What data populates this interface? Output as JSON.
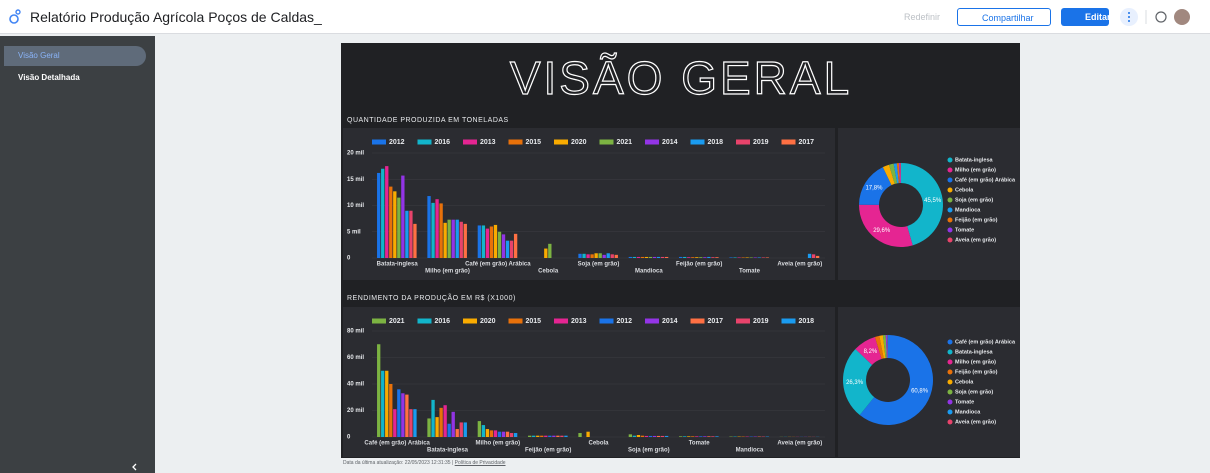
{
  "header": {
    "title": "Relatório Produção Agrícola Poços de Caldas_",
    "reset": "Redefinir",
    "share": "Compartilhar",
    "edit": "Editar"
  },
  "sidebar": {
    "pages": [
      "Visão Geral",
      "Visão Detalhada"
    ]
  },
  "report": {
    "title": "VISÃO GERAL"
  },
  "footer": {
    "updated": "Data da última atualização: 22/05/2023 12:31:35",
    "privacy": "Política de Privacidade"
  },
  "chart_data": [
    {
      "type": "bar",
      "title": "QUANTIDADE PRODUZIDA EM TONELADAS",
      "categories": [
        "Batata-inglesa",
        "Milho (em grão)",
        "Café (em grão) Arábica",
        "Cebola",
        "Soja (em grão)",
        "Mandioca",
        "Feijão (em grão)",
        "Tomate",
        "Aveia (em grão)"
      ],
      "series": [
        {
          "name": "2012",
          "color": "#1a73e8",
          "values": [
            16200,
            11800,
            6200,
            0,
            800,
            200,
            200,
            100,
            0
          ]
        },
        {
          "name": "2016",
          "color": "#12b5cb",
          "values": [
            17000,
            10500,
            6200,
            0,
            800,
            200,
            200,
            100,
            0
          ]
        },
        {
          "name": "2013",
          "color": "#e52592",
          "values": [
            17500,
            11200,
            5600,
            0,
            700,
            200,
            150,
            100,
            0
          ]
        },
        {
          "name": "2015",
          "color": "#e8710a",
          "values": [
            13600,
            10400,
            6000,
            0,
            700,
            200,
            150,
            100,
            0
          ]
        },
        {
          "name": "2020",
          "color": "#f9ab00",
          "values": [
            12700,
            6700,
            6300,
            1800,
            900,
            200,
            150,
            100,
            0
          ]
        },
        {
          "name": "2021",
          "color": "#7cb342",
          "values": [
            11500,
            7300,
            5000,
            2700,
            900,
            200,
            150,
            100,
            0
          ]
        },
        {
          "name": "2014",
          "color": "#9334e6",
          "values": [
            15700,
            7300,
            4500,
            0,
            600,
            200,
            150,
            100,
            0
          ]
        },
        {
          "name": "2018",
          "color": "#1a9bf0",
          "values": [
            9000,
            7300,
            3300,
            0,
            900,
            200,
            200,
            100,
            800
          ]
        },
        {
          "name": "2019",
          "color": "#e8436b",
          "values": [
            9000,
            6900,
            3300,
            0,
            700,
            200,
            150,
            100,
            700
          ]
        },
        {
          "name": "2017",
          "color": "#ff7043",
          "values": [
            6500,
            6500,
            4600,
            0,
            600,
            200,
            150,
            100,
            400
          ]
        }
      ],
      "ylim": [
        0,
        20000
      ],
      "yticks": [
        0,
        {
          "value": 5000,
          "label": "5 mil"
        },
        {
          "value": 10000,
          "label": "10 mil"
        },
        {
          "value": 15000,
          "label": "15 mil"
        },
        {
          "value": 20000,
          "label": "20 mil"
        }
      ],
      "grid": true
    },
    {
      "type": "pie",
      "categories": [
        "Batata-inglesa",
        "Milho (em grão)",
        "Café (em grão) Arábica",
        "Cebola",
        "Soja (em grão)",
        "Mandioca",
        "Feijão (em grão)",
        "Tomate",
        "Aveia (em grão)"
      ],
      "values": [
        45.5,
        29.6,
        17.8,
        2.5,
        1.8,
        1.2,
        0.8,
        0.5,
        0.3
      ],
      "value_labels": [
        "45,5%",
        "29,6%",
        "17,8%",
        null,
        null,
        null,
        null,
        null,
        null
      ],
      "colors": [
        "#12b5cb",
        "#e52592",
        "#1a73e8",
        "#f9ab00",
        "#7cb342",
        "#1a9bf0",
        "#e8710a",
        "#9334e6",
        "#e8436b"
      ]
    },
    {
      "type": "bar",
      "title": "RENDIMENTO DA PRODUÇÃO EM R$ (X1000)",
      "categories": [
        "Café (em grão) Arábica",
        "Batata-inglesa",
        "Milho (em grão)",
        "Feijão (em grão)",
        "Cebola",
        "Soja (em grão)",
        "Tomate",
        "Mandioca",
        "Aveia (em grão)"
      ],
      "series": [
        {
          "name": "2021",
          "color": "#7cb342",
          "values": [
            70000,
            14000,
            12000,
            1000,
            3000,
            2000,
            500,
            300,
            100
          ]
        },
        {
          "name": "2016",
          "color": "#12b5cb",
          "values": [
            50000,
            28000,
            9000,
            1000,
            0,
            1000,
            500,
            300,
            100
          ]
        },
        {
          "name": "2020",
          "color": "#f9ab00",
          "values": [
            50000,
            15000,
            6000,
            1000,
            4000,
            1500,
            500,
            300,
            100
          ]
        },
        {
          "name": "2015",
          "color": "#e8710a",
          "values": [
            40000,
            22000,
            5000,
            1000,
            0,
            1000,
            500,
            300,
            100
          ]
        },
        {
          "name": "2013",
          "color": "#e52592",
          "values": [
            21000,
            24000,
            5000,
            1000,
            0,
            800,
            500,
            300,
            100
          ]
        },
        {
          "name": "2012",
          "color": "#1a73e8",
          "values": [
            36000,
            10000,
            4000,
            1000,
            0,
            800,
            500,
            300,
            100
          ]
        },
        {
          "name": "2014",
          "color": "#9334e6",
          "values": [
            33000,
            19000,
            4000,
            1000,
            0,
            800,
            500,
            300,
            100
          ]
        },
        {
          "name": "2017",
          "color": "#ff7043",
          "values": [
            32000,
            6000,
            4000,
            1000,
            0,
            800,
            500,
            300,
            100
          ]
        },
        {
          "name": "2019",
          "color": "#e8436b",
          "values": [
            21000,
            11000,
            3000,
            1000,
            0,
            800,
            500,
            300,
            100
          ]
        },
        {
          "name": "2018",
          "color": "#1a9bf0",
          "values": [
            21000,
            11000,
            3000,
            1000,
            0,
            800,
            500,
            300,
            100
          ]
        }
      ],
      "ylim": [
        0,
        80000
      ],
      "yticks": [
        0,
        {
          "value": 20000,
          "label": "20 mil"
        },
        {
          "value": 40000,
          "label": "40 mil"
        },
        {
          "value": 60000,
          "label": "60 mil"
        },
        {
          "value": 80000,
          "label": "80 mil"
        }
      ],
      "grid": true
    },
    {
      "type": "pie",
      "categories": [
        "Café (em grão) Arábica",
        "Batata-inglesa",
        "Milho (em grão)",
        "Feijão (em grão)",
        "Cebola",
        "Soja (em grão)",
        "Tomate",
        "Mandioca",
        "Aveia (em grão)"
      ],
      "values": [
        60.8,
        26.3,
        8.2,
        1.6,
        1.3,
        1.0,
        0.5,
        0.2,
        0.1
      ],
      "value_labels": [
        "60,8%",
        "26,3%",
        "8,2%",
        null,
        null,
        null,
        null,
        null,
        null
      ],
      "colors": [
        "#1a73e8",
        "#12b5cb",
        "#e52592",
        "#e8710a",
        "#f9ab00",
        "#7cb342",
        "#9334e6",
        "#1a9bf0",
        "#e8436b"
      ]
    }
  ]
}
